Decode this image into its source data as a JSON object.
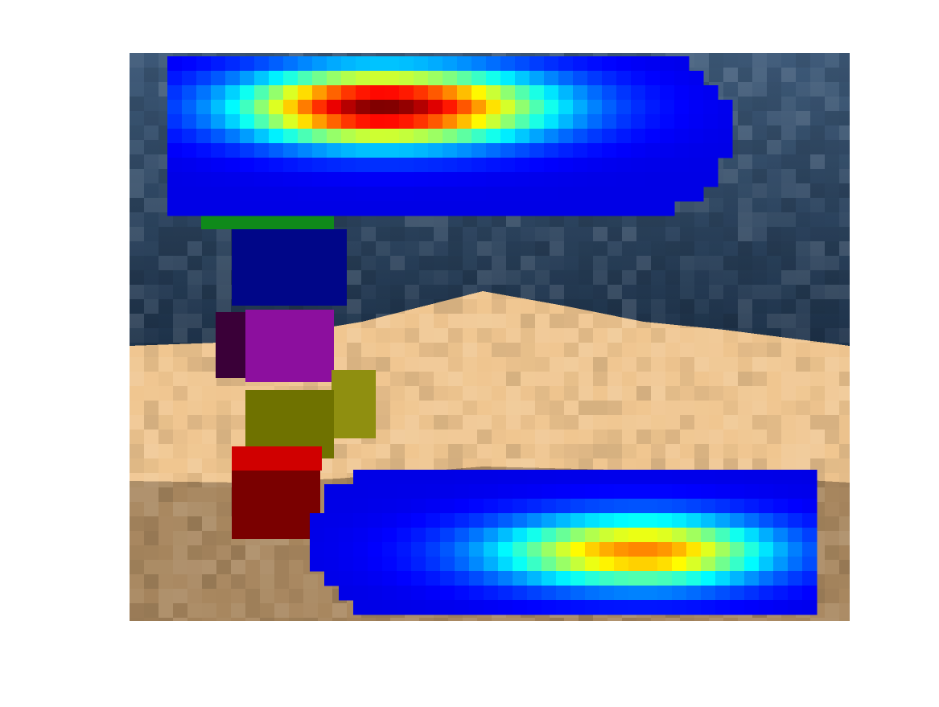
{
  "scene": {
    "sky_color_top": "#3e5a79",
    "sky_color_bottom": "#1d3148",
    "sand_color": "#f0c690",
    "dirt_color": "#a8875f",
    "blocks": [
      {
        "name": "green-block",
        "color": "#0f8a1a"
      },
      {
        "name": "blue-block",
        "color": "#000688"
      },
      {
        "name": "purple-block",
        "color": "#8c0f9e"
      },
      {
        "name": "olive-block",
        "color": "#6f7200"
      },
      {
        "name": "red-block",
        "color": "#7a0000"
      }
    ]
  },
  "heatmap": {
    "colormap": "jet",
    "blobs": [
      {
        "name": "upper-heatmap-blob",
        "peak": 1.0
      },
      {
        "name": "lower-heatmap-blob",
        "peak": 0.72
      }
    ]
  }
}
